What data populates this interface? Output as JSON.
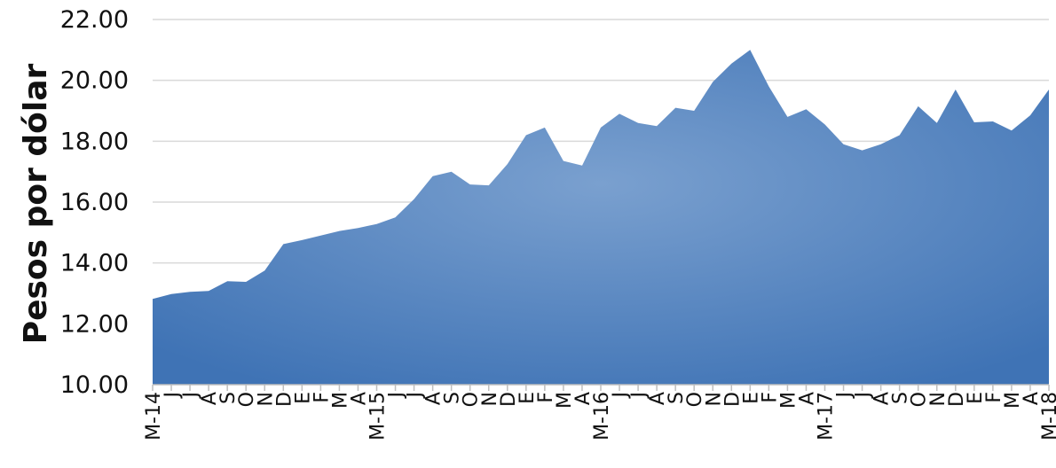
{
  "chart_data": {
    "type": "area",
    "ylabel": "Pesos por dólar",
    "xlabel": "",
    "title": "",
    "ylim": [
      10,
      22
    ],
    "yticks": [
      "10.00",
      "12.00",
      "14.00",
      "16.00",
      "18.00",
      "20.00",
      "22.00"
    ],
    "grid": true,
    "legend": "none",
    "fill_color": "#4a7fbf",
    "fill_color_light": "#7aa0cf",
    "x_labels": [
      "M-14",
      "J",
      "J",
      "A",
      "S",
      "O",
      "N",
      "D",
      "E",
      "F",
      "M",
      "A",
      "M-15",
      "J",
      "J",
      "A",
      "S",
      "O",
      "N",
      "D",
      "E",
      "F",
      "M",
      "A",
      "M-16",
      "J",
      "J",
      "A",
      "S",
      "O",
      "N",
      "D",
      "E",
      "F",
      "M",
      "A",
      "M-17",
      "J",
      "J",
      "A",
      "S",
      "O",
      "N",
      "D",
      "E",
      "F",
      "M",
      "A",
      "M-18"
    ],
    "values": [
      12.82,
      12.98,
      13.05,
      13.08,
      13.4,
      13.38,
      13.75,
      14.62,
      14.75,
      14.9,
      15.05,
      15.15,
      15.28,
      15.5,
      16.1,
      16.85,
      17.0,
      16.58,
      16.55,
      17.25,
      18.2,
      18.45,
      17.35,
      17.2,
      18.45,
      18.9,
      18.6,
      18.5,
      19.1,
      19.0,
      19.95,
      20.55,
      21.0,
      19.8,
      18.8,
      19.05,
      18.55,
      17.9,
      17.7,
      17.9,
      18.2,
      19.15,
      18.6,
      19.7,
      18.62,
      18.65,
      18.35,
      18.85,
      19.7
    ]
  }
}
